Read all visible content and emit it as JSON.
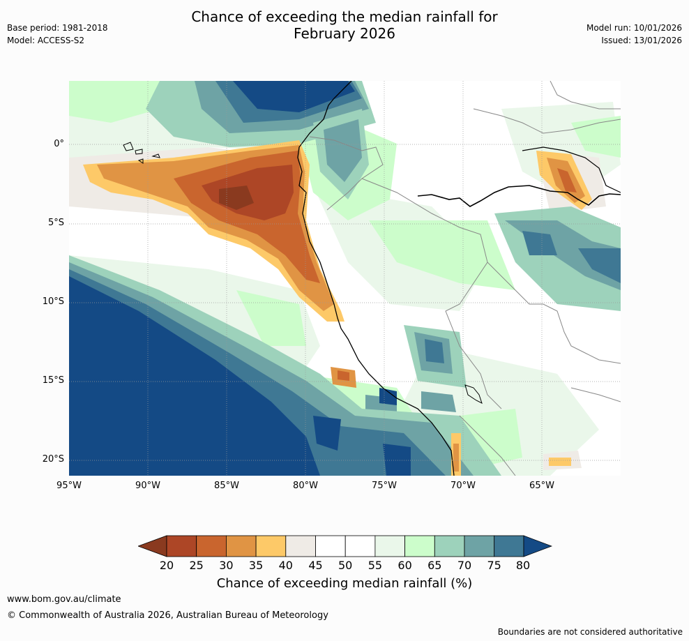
{
  "title": {
    "line1": "Chance of exceeding the median rainfall for",
    "line2": "February 2026"
  },
  "header_left": {
    "base_period": "Base period: 1981-2018",
    "model": "Model: ACCESS-S2"
  },
  "header_right": {
    "model_run": "Model run: 10/01/2026",
    "issued": "Issued: 13/01/2026"
  },
  "map": {
    "lat_labels": [
      "0°",
      "5°S",
      "10°S",
      "15°S",
      "20°S"
    ],
    "lon_labels": [
      "95°W",
      "90°W",
      "85°W",
      "80°W",
      "75°W",
      "70°W",
      "65°W"
    ]
  },
  "colorbar": {
    "ticks": [
      "20",
      "25",
      "30",
      "35",
      "40",
      "45",
      "50",
      "55",
      "60",
      "65",
      "70",
      "75",
      "80"
    ],
    "colors": {
      "below_20": "#8a3a1f",
      "b20_25": "#ad4626",
      "b25_30": "#c9652e",
      "b30_35": "#e09444",
      "b35_40": "#fdc968",
      "b40_45": "#efebe6",
      "b45_50": "#ffffff",
      "b50_55": "#ffffff",
      "b55_60": "#eaf7ea",
      "b60_65": "#ccfdcb",
      "b65_70": "#9dd2bb",
      "b70_75": "#6ea3a5",
      "b75_80": "#3f7894",
      "above_80": "#144a85"
    },
    "label": "Chance of exceeding median rainfall (%)"
  },
  "footer": {
    "url": "www.bom.gov.au/climate",
    "copyright": "© Commonwealth of Australia 2026, Australian Bureau of Meteorology",
    "note": "Boundaries are not considered authoritative"
  }
}
